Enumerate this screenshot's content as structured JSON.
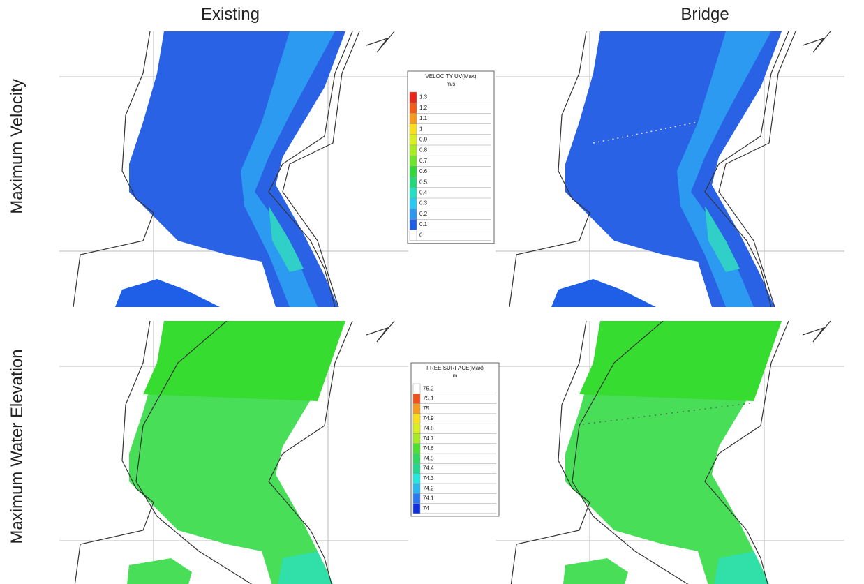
{
  "columns": [
    "Existing",
    "Bridge"
  ],
  "rows": [
    "Maximum Velocity",
    "Maximum Water Elevation"
  ],
  "legends": [
    {
      "title": "VELOCITY UV(Max)",
      "unit": "m/s",
      "items": [
        {
          "label": "1.3",
          "color": "#e8261c"
        },
        {
          "label": "1.2",
          "color": "#f25a1a"
        },
        {
          "label": "1.1",
          "color": "#f79a1d"
        },
        {
          "label": "1",
          "color": "#f9e01a"
        },
        {
          "label": "0.9",
          "color": "#d8f020"
        },
        {
          "label": "0.8",
          "color": "#a8ec22"
        },
        {
          "label": "0.7",
          "color": "#6ee42a"
        },
        {
          "label": "0.6",
          "color": "#2fd838"
        },
        {
          "label": "0.5",
          "color": "#22d87a"
        },
        {
          "label": "0.4",
          "color": "#22e0c0"
        },
        {
          "label": "0.3",
          "color": "#28c8f0"
        },
        {
          "label": "0.2",
          "color": "#2a98f0"
        },
        {
          "label": "0.1",
          "color": "#1f5fe8"
        },
        {
          "label": "0",
          "color": "#ffffff"
        }
      ]
    },
    {
      "title": "FREE SURFACE(Max)",
      "unit": "m",
      "items": [
        {
          "label": "75.2",
          "color": "#ffffff"
        },
        {
          "label": "75.1",
          "color": "#f0501a"
        },
        {
          "label": "75",
          "color": "#f79a1d"
        },
        {
          "label": "74.9",
          "color": "#f9e01a"
        },
        {
          "label": "74.8",
          "color": "#d8f020"
        },
        {
          "label": "74.7",
          "color": "#a8ec22"
        },
        {
          "label": "74.6",
          "color": "#4ce030"
        },
        {
          "label": "74.5",
          "color": "#2fd860"
        },
        {
          "label": "74.4",
          "color": "#22d890"
        },
        {
          "label": "74.3",
          "color": "#22e8e0"
        },
        {
          "label": "74.2",
          "color": "#28b8f0"
        },
        {
          "label": "74.1",
          "color": "#2a78f0"
        },
        {
          "label": "74",
          "color": "#1030e0"
        }
      ]
    }
  ]
}
